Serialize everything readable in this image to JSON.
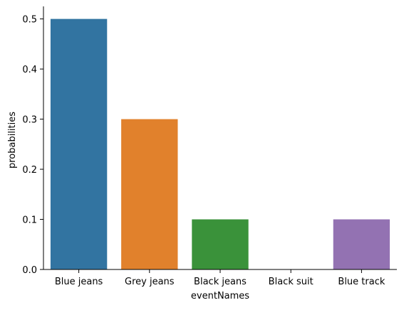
{
  "chart_data": {
    "type": "bar",
    "categories": [
      "Blue jeans",
      "Grey jeans",
      "Black jeans",
      "Black suit",
      "Blue track"
    ],
    "values": [
      0.5,
      0.3,
      0.1,
      0.0,
      0.1
    ],
    "colors": [
      "#3274a1",
      "#e1812c",
      "#3a923a",
      "#c03d3e",
      "#9372b2"
    ],
    "xlabel": "eventNames",
    "ylabel": "probabilities",
    "ylim": [
      0,
      0.525
    ],
    "yticks": [
      0.0,
      0.1,
      0.2,
      0.3,
      0.4,
      0.5
    ],
    "ytick_labels": [
      "0.0",
      "0.1",
      "0.2",
      "0.3",
      "0.4",
      "0.5"
    ],
    "grid": false,
    "spines": "left-bottom"
  }
}
